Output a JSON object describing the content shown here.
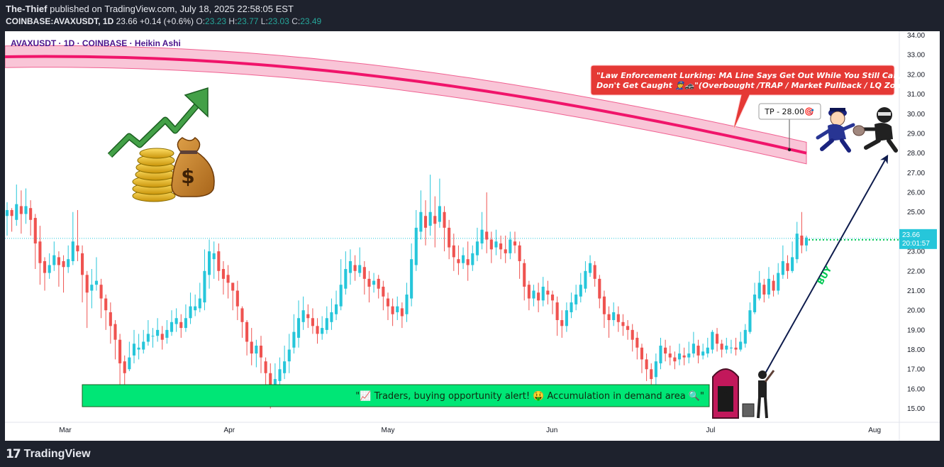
{
  "header": {
    "author": "The-Thief",
    "published": "published on TradingView.com, July 18, 2025 22:58:05 EST",
    "symbol_line": "COINBASE:AVAXUSDT, 1D",
    "last": "23.66",
    "change": "+0.14 (+0.6%)",
    "o_label": "O:",
    "o_value": "23.23",
    "h_label": "H:",
    "h_value": "23.77",
    "l_label": "L:",
    "l_value": "23.03",
    "c_label": "C:",
    "c_value": "23.49"
  },
  "legend": "AVAXUSDT · 1D · COINBASE · Heikin Ashi",
  "annotations": {
    "callout": "\"Law Enforcement Lurking: MA Line Says Get Out While You Still Can, Don't Get Caught 👮🚓\"(Overbought /TRAP / Market Pullback / LQ Zone)",
    "tp_label": "TP - 28.00🎯",
    "buy_label": "BUY",
    "demand_banner": "\"📈 Traders, buying opportunity alert! 🤑 Accumulation in demand area 🔍\""
  },
  "price_tag": {
    "price": "23.66",
    "countdown": "20:01:57"
  },
  "footer": {
    "logo_text": "TradingView"
  },
  "colors": {
    "up": "#26c6da",
    "down": "#ef5350",
    "ma": "#f0146a",
    "band": "#f8bbd0",
    "banner": "#00e676",
    "callout": "#e53935"
  },
  "chart_data": {
    "type": "candlestick",
    "style": "Heikin Ashi",
    "ylim": [
      14.3,
      34.2
    ],
    "y_ticks": [
      "34.00",
      "33.00",
      "32.00",
      "31.00",
      "30.00",
      "29.00",
      "28.00",
      "27.00",
      "26.00",
      "25.00",
      "24.00",
      "23.00",
      "22.00",
      "21.00",
      "20.00",
      "19.00",
      "18.00",
      "17.00",
      "16.00",
      "15.00"
    ],
    "x_ticks": [
      {
        "label": "Mar",
        "day": 11
      },
      {
        "label": "Apr",
        "day": 42
      },
      {
        "label": "May",
        "day": 72
      },
      {
        "label": "Jun",
        "day": 103
      },
      {
        "label": "Jul",
        "day": 133
      },
      {
        "label": "Aug",
        "day": 164
      }
    ],
    "x_range": [
      0,
      168
    ],
    "candles": [
      [
        24.8,
        25.1,
        25.5,
        23.8
      ],
      [
        25.1,
        24.8,
        25.2,
        24.0
      ],
      [
        24.6,
        25.4,
        26.4,
        24.3
      ],
      [
        25.3,
        24.9,
        26.1,
        23.9
      ],
      [
        24.9,
        25.3,
        26.2,
        24.4
      ],
      [
        25.2,
        24.6,
        25.6,
        23.8
      ],
      [
        24.7,
        23.4,
        24.9,
        22.1
      ],
      [
        23.5,
        22.4,
        24.3,
        21.3
      ],
      [
        22.5,
        21.9,
        22.7,
        21.0
      ],
      [
        21.9,
        22.3,
        22.9,
        21.6
      ],
      [
        22.3,
        22.8,
        23.5,
        22.0
      ],
      [
        22.7,
        22.3,
        23.0,
        21.2
      ],
      [
        22.5,
        22.2,
        22.8,
        20.9
      ],
      [
        22.2,
        22.6,
        23.3,
        21.9
      ],
      [
        22.5,
        23.5,
        25.0,
        22.3
      ],
      [
        23.3,
        23.0,
        25.1,
        22.5
      ],
      [
        22.9,
        21.8,
        23.3,
        20.4
      ],
      [
        21.8,
        20.9,
        22.0,
        19.1
      ],
      [
        21.0,
        21.3,
        22.1,
        20.1
      ],
      [
        21.3,
        21.5,
        22.7,
        21.0
      ],
      [
        21.3,
        20.6,
        21.6,
        19.6
      ],
      [
        20.6,
        20.0,
        20.8,
        19.0
      ],
      [
        19.9,
        19.2,
        20.4,
        18.3
      ],
      [
        19.3,
        18.5,
        19.5,
        17.5
      ],
      [
        18.5,
        17.3,
        18.8,
        16.1
      ],
      [
        17.4,
        16.8,
        17.7,
        16.0
      ],
      [
        17.0,
        17.6,
        18.4,
        16.9
      ],
      [
        17.7,
        18.3,
        19.0,
        17.3
      ],
      [
        18.0,
        18.1,
        18.8,
        17.5
      ],
      [
        18.0,
        18.4,
        19.0,
        17.8
      ],
      [
        18.4,
        18.8,
        19.5,
        18.2
      ],
      [
        18.7,
        18.7,
        19.1,
        18.1
      ],
      [
        18.7,
        19.0,
        19.6,
        18.4
      ],
      [
        18.8,
        18.5,
        19.2,
        18.0
      ],
      [
        18.6,
        19.0,
        19.5,
        18.3
      ],
      [
        18.9,
        19.4,
        20.0,
        18.7
      ],
      [
        19.3,
        19.6,
        20.1,
        18.9
      ],
      [
        19.4,
        19.1,
        19.8,
        18.6
      ],
      [
        19.1,
        19.6,
        20.3,
        18.9
      ],
      [
        19.6,
        20.2,
        20.9,
        19.3
      ],
      [
        20.0,
        20.2,
        20.8,
        19.7
      ],
      [
        20.1,
        20.6,
        21.4,
        19.9
      ],
      [
        20.4,
        22.0,
        23.1,
        20.0
      ],
      [
        21.8,
        23.0,
        23.6,
        21.1
      ],
      [
        22.6,
        22.9,
        23.5,
        21.6
      ],
      [
        23.0,
        22.0,
        23.4,
        21.5
      ],
      [
        22.1,
        21.6,
        22.5,
        20.8
      ],
      [
        21.8,
        21.4,
        22.3,
        20.6
      ],
      [
        21.4,
        21.0,
        21.4,
        20.0
      ],
      [
        21.0,
        20.2,
        21.5,
        19.5
      ],
      [
        20.1,
        19.4,
        20.2,
        18.6
      ],
      [
        19.4,
        18.4,
        19.5,
        17.7
      ],
      [
        18.4,
        17.8,
        19.1,
        17.2
      ],
      [
        17.8,
        18.2,
        18.5,
        17.1
      ],
      [
        18.2,
        17.6,
        18.7,
        16.8
      ],
      [
        17.4,
        16.8,
        17.6,
        16.0
      ],
      [
        16.8,
        16.0,
        17.3,
        15.0
      ],
      [
        16.2,
        16.5,
        17.3,
        15.8
      ],
      [
        16.4,
        17.0,
        17.6,
        16.0
      ],
      [
        16.8,
        17.4,
        18.2,
        16.5
      ],
      [
        17.4,
        18.0,
        18.8,
        16.8
      ],
      [
        18.1,
        18.9,
        19.8,
        17.8
      ],
      [
        18.6,
        19.6,
        20.5,
        18.1
      ],
      [
        19.4,
        20.0,
        20.7,
        19.0
      ],
      [
        19.8,
        19.6,
        20.3,
        19.1
      ],
      [
        19.6,
        19.2,
        20.1,
        18.8
      ],
      [
        19.2,
        18.8,
        19.6,
        18.3
      ],
      [
        18.8,
        19.1,
        19.7,
        18.5
      ],
      [
        19.0,
        19.6,
        20.2,
        18.8
      ],
      [
        19.4,
        19.9,
        20.6,
        19.0
      ],
      [
        19.8,
        20.3,
        21.0,
        19.5
      ],
      [
        20.2,
        21.3,
        22.6,
        20.0
      ],
      [
        21.1,
        22.1,
        23.0,
        20.8
      ],
      [
        21.9,
        22.5,
        23.1,
        21.3
      ],
      [
        22.3,
        22.0,
        22.8,
        21.5
      ],
      [
        21.9,
        22.3,
        23.2,
        21.7
      ],
      [
        22.2,
        21.6,
        22.5,
        20.8
      ],
      [
        21.6,
        21.2,
        22.0,
        20.4
      ],
      [
        21.3,
        21.5,
        21.9,
        20.9
      ],
      [
        21.6,
        21.1,
        21.8,
        20.6
      ],
      [
        21.2,
        20.7,
        21.5,
        20.0
      ],
      [
        20.6,
        20.2,
        20.9,
        19.5
      ],
      [
        20.2,
        19.8,
        20.6,
        19.2
      ],
      [
        19.9,
        20.2,
        20.7,
        19.5
      ],
      [
        20.1,
        19.7,
        20.4,
        19.1
      ],
      [
        19.8,
        20.8,
        21.4,
        19.4
      ],
      [
        20.6,
        22.6,
        23.4,
        20.2
      ],
      [
        22.3,
        24.2,
        25.1,
        22.0
      ],
      [
        24.0,
        25.0,
        26.1,
        23.6
      ],
      [
        24.8,
        24.2,
        25.6,
        23.3
      ],
      [
        24.3,
        25.0,
        26.9,
        23.8
      ],
      [
        24.8,
        24.4,
        25.8,
        23.2
      ],
      [
        24.5,
        25.3,
        26.7,
        24.2
      ],
      [
        25.0,
        24.2,
        25.3,
        23.0
      ],
      [
        24.2,
        23.2,
        24.6,
        22.6
      ],
      [
        23.3,
        22.7,
        23.9,
        22.0
      ],
      [
        22.6,
        22.4,
        23.3,
        21.8
      ],
      [
        22.4,
        22.8,
        23.2,
        22.1
      ],
      [
        22.6,
        22.3,
        23.5,
        21.5
      ],
      [
        22.3,
        22.9,
        23.3,
        22.0
      ],
      [
        22.8,
        23.5,
        24.2,
        22.5
      ],
      [
        23.4,
        24.1,
        25.0,
        23.1
      ],
      [
        24.0,
        23.6,
        26.0,
        22.9
      ],
      [
        23.6,
        23.1,
        24.0,
        22.4
      ],
      [
        23.2,
        23.5,
        24.1,
        22.8
      ],
      [
        23.4,
        23.1,
        23.8,
        22.6
      ],
      [
        23.1,
        22.9,
        23.8,
        22.4
      ],
      [
        22.9,
        23.6,
        24.0,
        22.6
      ],
      [
        23.5,
        23.3,
        24.0,
        22.9
      ],
      [
        23.3,
        22.5,
        23.5,
        21.6
      ],
      [
        22.4,
        21.2,
        22.6,
        20.5
      ],
      [
        21.3,
        20.6,
        21.5,
        20.0
      ],
      [
        20.6,
        21.0,
        21.3,
        20.2
      ],
      [
        20.9,
        20.5,
        21.4,
        19.9
      ],
      [
        20.5,
        21.2,
        21.7,
        20.2
      ],
      [
        21.0,
        20.8,
        21.5,
        20.3
      ],
      [
        20.8,
        20.5,
        21.0,
        19.8
      ],
      [
        20.4,
        19.5,
        20.7,
        18.7
      ],
      [
        19.5,
        19.2,
        20.0,
        18.6
      ],
      [
        19.2,
        20.0,
        20.4,
        18.9
      ],
      [
        19.9,
        20.4,
        20.9,
        19.6
      ],
      [
        20.3,
        20.8,
        21.3,
        20.0
      ],
      [
        20.7,
        21.3,
        21.9,
        20.4
      ],
      [
        21.1,
        22.0,
        22.5,
        20.9
      ],
      [
        21.9,
        22.4,
        22.8,
        21.7
      ],
      [
        22.3,
        21.6,
        22.5,
        21.2
      ],
      [
        21.6,
        20.6,
        21.8,
        20.1
      ],
      [
        20.7,
        19.8,
        21.0,
        19.1
      ],
      [
        19.8,
        19.5,
        20.2,
        18.6
      ],
      [
        19.5,
        19.9,
        20.4,
        19.2
      ],
      [
        19.8,
        19.4,
        20.2,
        18.9
      ],
      [
        19.4,
        19.2,
        19.8,
        18.7
      ],
      [
        19.2,
        19.0,
        19.5,
        18.5
      ],
      [
        19.0,
        18.5,
        19.3,
        17.9
      ],
      [
        18.6,
        18.1,
        18.9,
        17.5
      ],
      [
        18.1,
        17.5,
        18.3,
        16.8
      ],
      [
        17.5,
        17.0,
        17.8,
        16.4
      ],
      [
        17.0,
        16.5,
        17.3,
        16.0
      ],
      [
        16.6,
        17.4,
        17.8,
        16.2
      ],
      [
        17.3,
        18.2,
        18.6,
        17.0
      ],
      [
        18.1,
        17.8,
        18.5,
        17.4
      ],
      [
        17.8,
        17.6,
        18.2,
        17.2
      ],
      [
        17.6,
        17.4,
        17.9,
        17.0
      ],
      [
        17.5,
        17.8,
        18.3,
        17.2
      ],
      [
        17.7,
        17.6,
        18.1,
        17.2
      ],
      [
        17.6,
        17.8,
        18.4,
        17.3
      ],
      [
        17.8,
        18.3,
        18.9,
        17.6
      ],
      [
        18.2,
        17.7,
        18.5,
        17.3
      ],
      [
        17.7,
        17.9,
        18.3,
        17.5
      ],
      [
        17.8,
        18.1,
        18.6,
        17.6
      ],
      [
        18.0,
        18.9,
        19.0,
        17.8
      ],
      [
        18.8,
        18.3,
        19.1,
        17.9
      ],
      [
        18.3,
        18.0,
        18.5,
        17.6
      ],
      [
        18.0,
        18.2,
        18.6,
        17.8
      ],
      [
        18.1,
        18.1,
        18.5,
        17.8
      ],
      [
        18.1,
        18.0,
        18.6,
        17.7
      ],
      [
        18.0,
        18.4,
        18.9,
        17.9
      ],
      [
        18.3,
        19.0,
        19.3,
        18.1
      ],
      [
        18.9,
        20.0,
        20.4,
        18.8
      ],
      [
        19.9,
        20.8,
        21.4,
        19.8
      ],
      [
        20.6,
        21.4,
        22.0,
        20.5
      ],
      [
        21.3,
        20.8,
        21.6,
        20.4
      ],
      [
        20.8,
        21.6,
        22.2,
        20.6
      ],
      [
        21.5,
        21.0,
        21.8,
        20.7
      ],
      [
        21.0,
        21.9,
        22.4,
        20.8
      ],
      [
        21.8,
        22.5,
        23.3,
        21.6
      ],
      [
        22.4,
        22.0,
        22.8,
        21.6
      ],
      [
        22.0,
        22.7,
        23.5,
        21.9
      ],
      [
        22.6,
        23.9,
        24.5,
        22.4
      ],
      [
        23.8,
        23.3,
        25.0,
        22.9
      ],
      [
        23.3,
        23.7,
        23.8,
        23.0
      ]
    ],
    "ma_line": {
      "start_price": 32.9,
      "end_price": 28.0
    },
    "last_price": 23.66,
    "tp_price": 28.0,
    "demand_zone": [
      15.0,
      16.2
    ]
  }
}
